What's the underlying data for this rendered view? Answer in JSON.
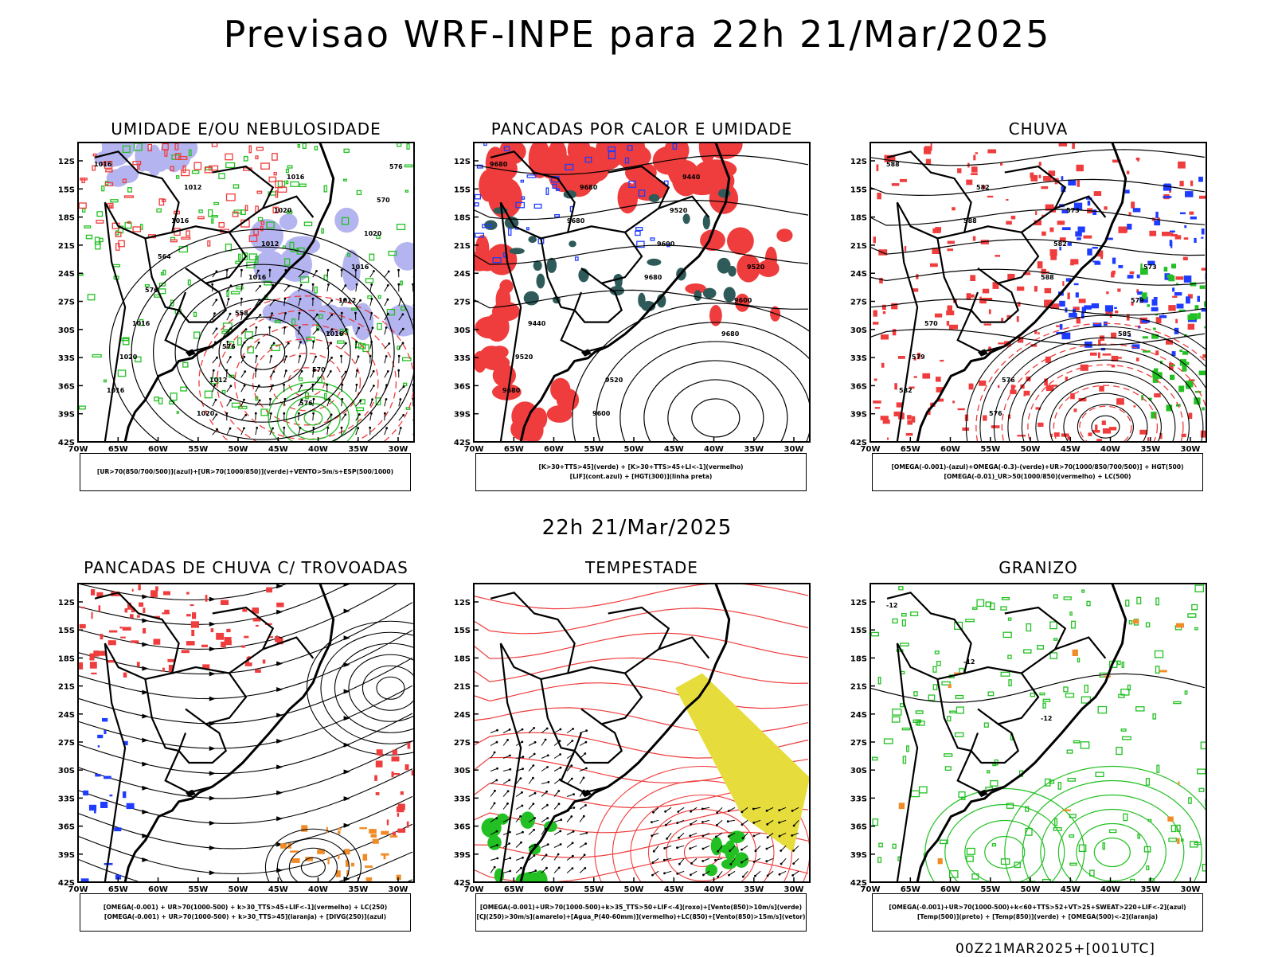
{
  "page": {
    "title": "Previsao WRF-INPE  para 22h 21/Mar/2025",
    "subtitle": "22h 21/Mar/2025",
    "footer": "00Z21MAR2025+[001UTC]"
  },
  "axes": {
    "lat_labels": [
      "12S",
      "15S",
      "18S",
      "21S",
      "24S",
      "27S",
      "30S",
      "33S",
      "36S",
      "39S",
      "42S"
    ],
    "lon_labels": [
      "70W",
      "65W",
      "60W",
      "55W",
      "50W",
      "45W",
      "40W",
      "35W",
      "30W"
    ],
    "lat_range": [
      -42,
      -10
    ],
    "lon_range": [
      -70,
      -28
    ]
  },
  "colors": {
    "red": "#ef3c3c",
    "green": "#22c022",
    "blue": "#1e3cff",
    "lavender": "#b4b4f0",
    "darkteal": "#2e5a5a",
    "yellow": "#e6dc3c",
    "orange": "#f08c28",
    "black": "#000000"
  },
  "chart_data": [
    {
      "type": "heatmap",
      "title": "UMIDADE E/OU NEBULOSIDADE",
      "legend": [
        "[UR>70(850/700/500)](azul)+[UR>70(1000/850)](verde)+VENTO>5m/s+ESP(500/1000)"
      ],
      "layers": [
        "lavender",
        "green",
        "red-dashed",
        "black-contour",
        "wind-vectors"
      ],
      "contour_labels": [
        "1016",
        "1016",
        "1016",
        "1016",
        "1016",
        "1012",
        "1012",
        "1012",
        "1020",
        "1020",
        "1020",
        "1016",
        "1016",
        "1012",
        "1016",
        "1020",
        "576",
        "576",
        "576",
        "570",
        "564",
        "558",
        "570",
        "576"
      ]
    },
    {
      "type": "heatmap",
      "title": "PANCADAS POR CALOR E UMIDADE",
      "legend": [
        "[K>30+TTS>45](verde) + [K>30+TTS>45+LI<-1](vermelho)",
        "[LIF](cont.azul) + [HGT(300)](linha preta)"
      ],
      "layers": [
        "red",
        "darkteal",
        "blue-contour",
        "black-contour"
      ],
      "contour_labels": [
        "9680",
        "9680",
        "9680",
        "9680",
        "9680",
        "9680",
        "9600",
        "9600",
        "9520",
        "9600",
        "9520",
        "9520",
        "9440",
        "9520",
        "9440"
      ]
    },
    {
      "type": "heatmap",
      "title": "CHUVA",
      "legend": [
        "[OMEGA(-0.001)-(azul)+OMEGA(-0.3)-(verde)+UR>70(1000/850/700/500)] + HGT(500)",
        "[OMEGA(-0.01)_UR>50(1000/850)(vermelho) + LC(500)"
      ],
      "layers": [
        "red",
        "blue",
        "green",
        "black-contour"
      ],
      "contour_labels": [
        "588",
        "588",
        "588",
        "585",
        "582",
        "582",
        "582",
        "579",
        "579",
        "576",
        "573",
        "573",
        "570",
        "576"
      ]
    },
    {
      "type": "heatmap",
      "title": "PANCADAS DE CHUVA C/ TROVOADAS",
      "legend": [
        "[OMEGA(-0.001) + UR>70(1000-500) + k>30_TTS>45+LIF<-1](vermelho) + LC(250)",
        "[OMEGA(-0.001) + UR>70(1000-500) + k>30_TTS>45](laranja) + [DIVG(250)](azul)"
      ],
      "layers": [
        "red",
        "orange",
        "blue",
        "streamlines"
      ]
    },
    {
      "type": "heatmap",
      "title": "TEMPESTADE",
      "legend": [
        "[OMEGA(-0.001)+UR>70(1000-500)+k>35_TTS>50+LIF<-4](roxo)+[Vento(850)>10m/s](verde)",
        "[CJ(250)>30m/s](amarelo)+[Agua_P(40-60mm)](vermelho)+LC(850)+[Vento(850)>15m/s](vetor)"
      ],
      "layers": [
        "red-contour",
        "yellow",
        "green",
        "wind-vectors"
      ]
    },
    {
      "type": "heatmap",
      "title": "GRANIZO",
      "legend": [
        "[OMEGA(-0.001)+UR>70(1000-500)+k<60+TTS>52+VT>25+SWEAT>220+LIF<-2](azul)",
        "[Temp(500)](preto) + [Temp(850)](verde) + [OMEGA(500)<-2](laranja)"
      ],
      "layers": [
        "green-contour",
        "black-contour",
        "orange"
      ],
      "contour_labels": [
        "-12",
        "-12",
        "-12"
      ]
    }
  ]
}
